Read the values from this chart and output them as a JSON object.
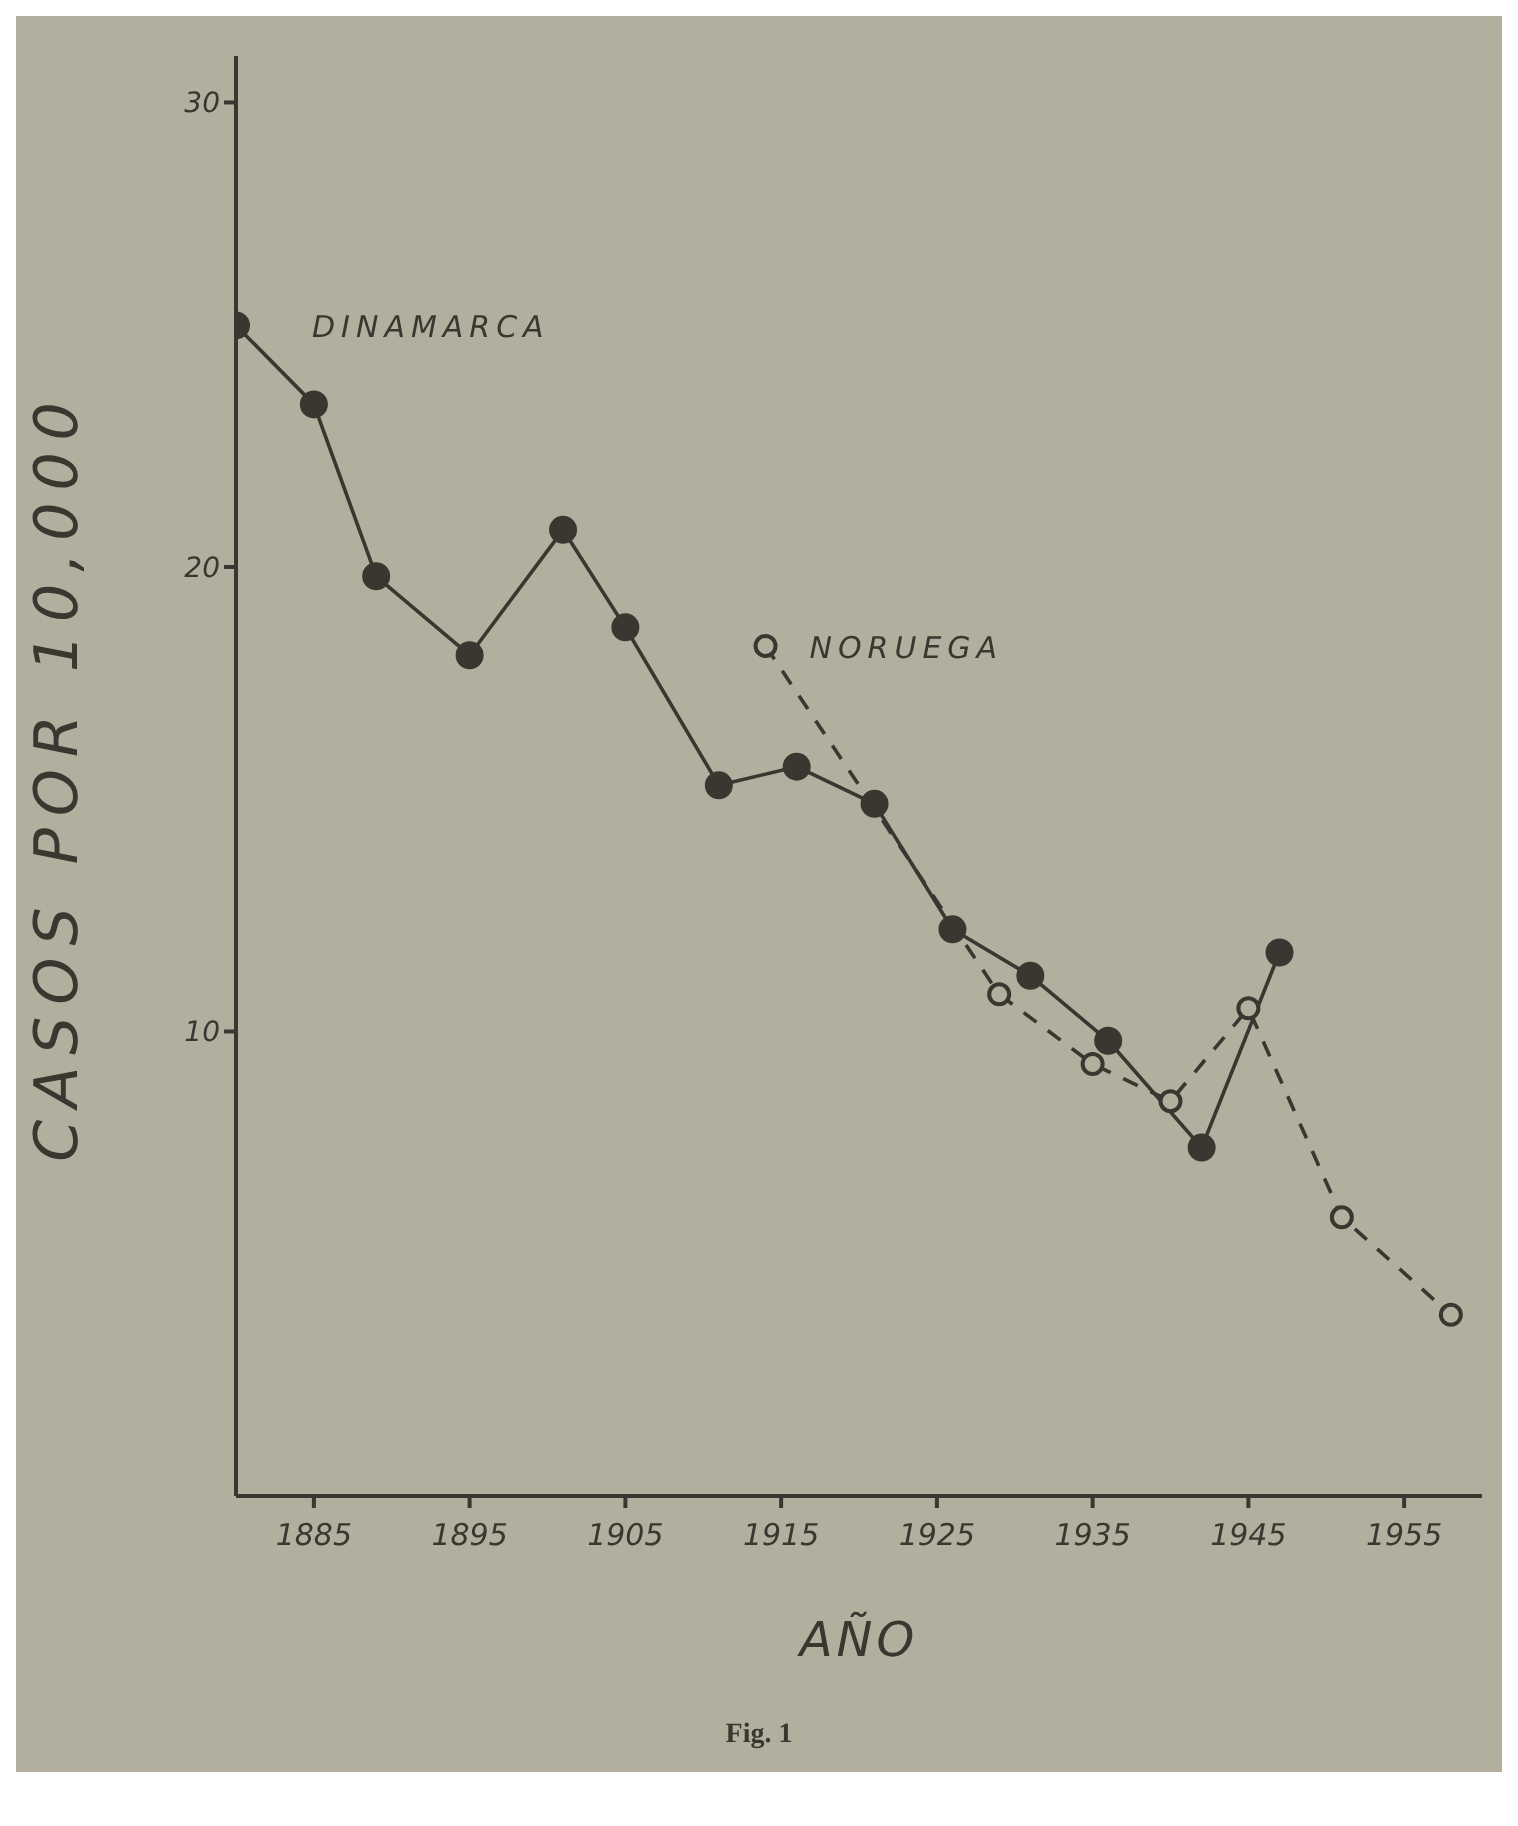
{
  "chart_data": {
    "type": "line",
    "xlabel": "AÑO",
    "ylabel": "CASOS POR 10,000",
    "annotations": [
      "Fig. 1"
    ],
    "xlim": [
      1880,
      1960
    ],
    "xticks": [
      1885,
      1895,
      1905,
      1915,
      1925,
      1935,
      1945,
      1955
    ],
    "ylim": [
      0,
      31
    ],
    "yticks": [
      10,
      20,
      30
    ],
    "marker": "circle",
    "series": [
      {
        "name": "DINAMARCA",
        "color": "#3a3630",
        "line_style": "solid",
        "x": [
          1880,
          1885,
          1889,
          1895,
          1901,
          1905,
          1911,
          1916,
          1921,
          1926,
          1931,
          1936,
          1942,
          1947
        ],
        "values": [
          25.2,
          23.5,
          19.8,
          18.1,
          20.8,
          18.7,
          15.3,
          15.7,
          14.9,
          12.2,
          11.2,
          9.8,
          7.5,
          11.7
        ]
      },
      {
        "name": "NORUEGA",
        "color": "#3a3630",
        "line_style": "dashed",
        "x": [
          1914,
          1929,
          1935,
          1940,
          1945,
          1951,
          1958
        ],
        "values": [
          18.3,
          10.8,
          9.3,
          8.5,
          10.5,
          6.0,
          3.9
        ]
      }
    ]
  }
}
